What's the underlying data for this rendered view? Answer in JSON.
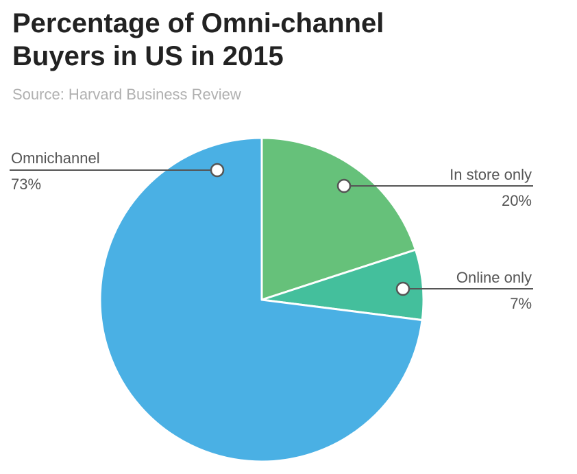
{
  "header": {
    "title_line1": "Percentage of Omni-channel",
    "title_line2": "Buyers in US in 2015",
    "source": "Source: Harvard Business Review"
  },
  "chart_data": {
    "type": "pie",
    "title": "Percentage of Omni-channel Buyers in US in 2015",
    "subtitle": "Source: Harvard Business Review",
    "slices": [
      {
        "label": "In store only",
        "value": 20,
        "value_label": "20%",
        "color": "#66c17a"
      },
      {
        "label": "Online only",
        "value": 7,
        "value_label": "7%",
        "color": "#44bf9c"
      },
      {
        "label": "Omnichannel",
        "value": 73,
        "value_label": "73%",
        "color": "#4ab0e4"
      }
    ],
    "start": "12 o'clock",
    "direction": "clockwise",
    "legend": "none",
    "label_style": "leader lines with hollow circle markers"
  }
}
